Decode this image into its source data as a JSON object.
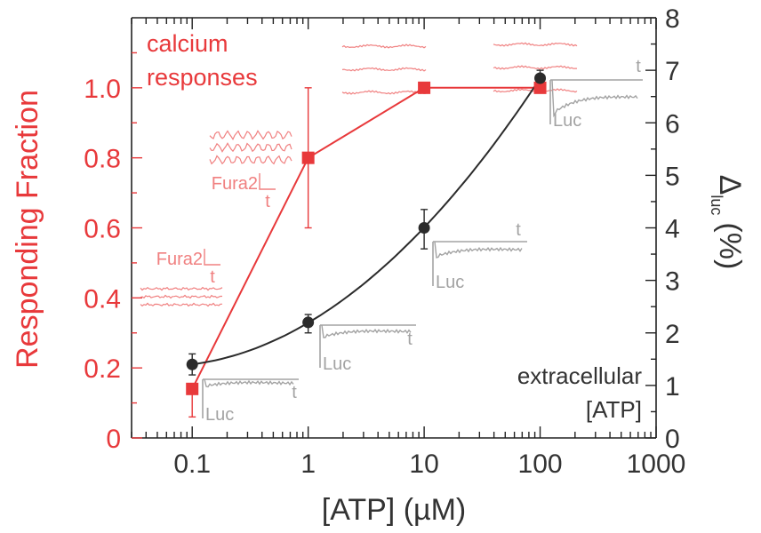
{
  "chart_data": {
    "type": "scatter",
    "xlabel": "[ATP] (µM)",
    "ylabel_left": "Responding Fraction",
    "ylabel_right": "Δ",
    "ylabel_right_sub": "luc",
    "ylabel_right_unit": "(%)",
    "x_scale": "log",
    "xlim": [
      0.03,
      1000
    ],
    "x_ticks": [
      0.1,
      1,
      10,
      100,
      1000
    ],
    "x_tick_labels": [
      "0.1",
      "1",
      "10",
      "100",
      "1000"
    ],
    "ylim_left": [
      0,
      1.2
    ],
    "y_ticks_left": [
      0,
      0.2,
      0.4,
      0.6,
      0.8,
      1.0
    ],
    "y_tick_labels_left": [
      "0",
      "0.2",
      "0.4",
      "0.6",
      "0.8",
      "1.0"
    ],
    "ylim_right": [
      0,
      8
    ],
    "y_ticks_right": [
      0,
      1,
      2,
      3,
      4,
      5,
      6,
      7,
      8
    ],
    "y_tick_labels_right": [
      "0",
      "1",
      "2",
      "3",
      "4",
      "5",
      "6",
      "7",
      "8"
    ],
    "series": [
      {
        "axis": "left",
        "color": "#e8393b",
        "marker": "square",
        "points": [
          {
            "x": 0.1,
            "y": 0.14,
            "err_low": 0.06,
            "err_high": 0.14
          },
          {
            "x": 1,
            "y": 0.8,
            "err_low": 0.6,
            "err_high": 1.0
          },
          {
            "x": 10,
            "y": 1.0
          },
          {
            "x": 100,
            "y": 1.0
          }
        ]
      },
      {
        "axis": "right",
        "color": "#2b2b2b",
        "marker": "circle",
        "fit_curve": true,
        "points": [
          {
            "x": 0.1,
            "y": 1.4,
            "err_low": 1.2,
            "err_high": 1.6
          },
          {
            "x": 1,
            "y": 2.2,
            "err_low": 2.0,
            "err_high": 2.35
          },
          {
            "x": 10,
            "y": 4.0,
            "err_low": 3.6,
            "err_high": 4.35
          },
          {
            "x": 100,
            "y": 6.85,
            "err_low": 6.7,
            "err_high": 7.0
          }
        ]
      }
    ],
    "annotations": {
      "calcium_line1": "calcium",
      "calcium_line2": "responses",
      "extracellular_line1": "extracellular",
      "extracellular_line2": "[ATP]",
      "fura_label": "Fura2",
      "luc_label": "Luc",
      "t_label": "t"
    },
    "colors": {
      "calcium": "#e8393b",
      "luminescence": "#2b2b2b",
      "inset_calcium": "#f08080",
      "inset_luc": "#a3a3a3"
    }
  }
}
